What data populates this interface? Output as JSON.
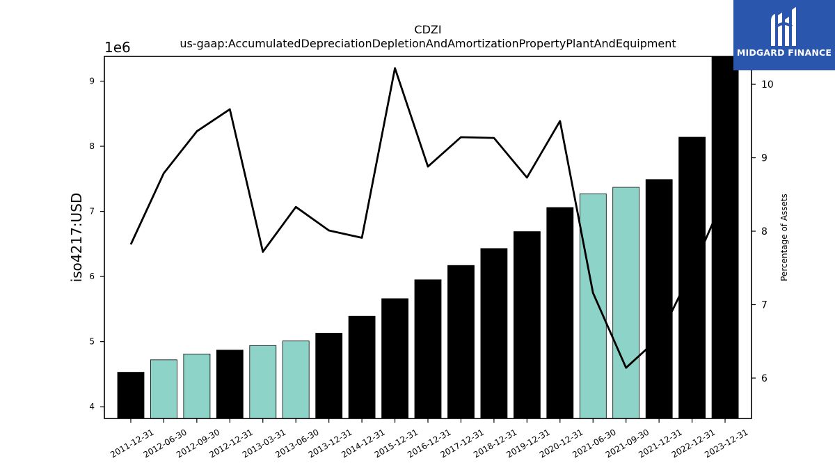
{
  "chart_data": {
    "type": "bar",
    "title": "CDZI",
    "subtitle": "us-gaap:AccumulatedDepreciationDepletionAndAmortizationPropertyPlantAndEquipment",
    "ylabel": "iso4217:USD",
    "y_multiplier_label": "1e6",
    "y2label": "Percentage of Assets",
    "categories": [
      "2011-12-31",
      "2012-06-30",
      "2012-09-30",
      "2012-12-31",
      "2013-03-31",
      "2013-06-30",
      "2013-12-31",
      "2014-12-31",
      "2015-12-31",
      "2016-12-31",
      "2017-12-31",
      "2018-12-31",
      "2019-12-31",
      "2020-12-31",
      "2021-06-30",
      "2021-09-30",
      "2021-12-31",
      "2022-12-31",
      "2023-12-31"
    ],
    "series": [
      {
        "type": "bar",
        "axis": "left",
        "values": [
          4.53,
          4.72,
          4.81,
          4.87,
          4.94,
          5.01,
          5.13,
          5.39,
          5.66,
          5.95,
          6.17,
          6.43,
          6.69,
          7.06,
          7.27,
          7.37,
          7.49,
          8.14,
          9.38
        ],
        "bar_colors": [
          "#000000",
          "#8dd3c7",
          "#8dd3c7",
          "#000000",
          "#8dd3c7",
          "#8dd3c7",
          "#000000",
          "#000000",
          "#000000",
          "#000000",
          "#000000",
          "#000000",
          "#000000",
          "#000000",
          "#8dd3c7",
          "#8dd3c7",
          "#000000",
          "#000000",
          "#000000"
        ]
      },
      {
        "type": "line",
        "axis": "right",
        "color": "#000000",
        "values": [
          7.82,
          8.79,
          9.36,
          9.66,
          7.72,
          8.33,
          8.01,
          7.91,
          10.22,
          8.88,
          9.28,
          9.27,
          8.73,
          9.5,
          7.16,
          6.14,
          6.55,
          7.47,
          8.49
        ]
      }
    ],
    "ylim": [
      3.82,
      9.38
    ],
    "yticks": [
      4,
      5,
      6,
      7,
      8,
      9
    ],
    "y2lim": [
      5.45,
      10.38
    ],
    "y2ticks": [
      6,
      7,
      8,
      9,
      10
    ],
    "grid": false
  },
  "logo": {
    "text": "MIDGARD FINANCE",
    "background": "#2a56ad"
  }
}
